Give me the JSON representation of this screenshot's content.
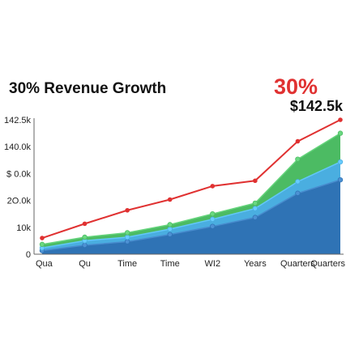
{
  "header": {
    "title": "30% Revenue Growth",
    "growth_pct": "30%",
    "revenue_total": "$142.5k"
  },
  "colors": {
    "red": "#e03131",
    "green": "#4cbb63",
    "light_blue": "#4aaee0",
    "dark_blue": "#2f73b5"
  },
  "chart_data": {
    "type": "area",
    "title": "30% Revenue Growth",
    "categories": [
      "Qua",
      "Qu",
      "Time",
      "Time",
      "WI2",
      "Years",
      "Quarters",
      "Quarters"
    ],
    "y_tick_labels": [
      "142.5k",
      "140.0k",
      "$ 0.0k",
      "2O.0k",
      "10k",
      "0"
    ],
    "y_range": [
      0,
      150
    ],
    "grid": false,
    "series": [
      {
        "kind": "area",
        "color": "#2f73b5",
        "values": [
          4,
          10,
          14,
          22,
          31,
          41,
          68,
          83
        ]
      },
      {
        "kind": "area",
        "color": "#4aaee0",
        "values": [
          7,
          15,
          19,
          28,
          39,
          51,
          81,
          103
        ]
      },
      {
        "kind": "area",
        "color": "#4cbb63",
        "values": [
          11,
          19,
          24,
          33,
          45,
          57,
          106,
          135
        ]
      },
      {
        "kind": "line",
        "color": "#e03131",
        "values": [
          18,
          34,
          49,
          61,
          76,
          82,
          126,
          150
        ]
      }
    ]
  }
}
